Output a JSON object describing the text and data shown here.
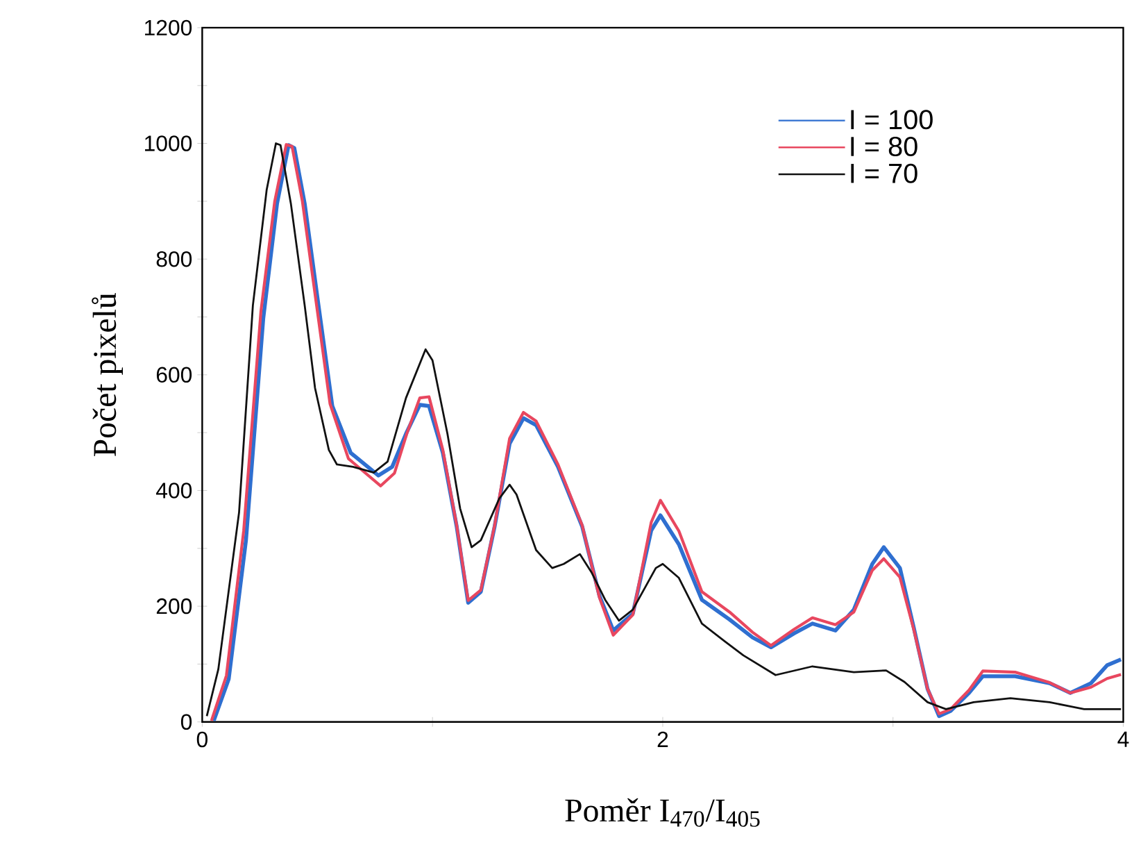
{
  "chart_data": {
    "type": "line",
    "xlabel": "Poměr I$_{470}$/I$_{405}$",
    "ylabel": "Počet pixelů",
    "xlim": [
      0,
      4
    ],
    "ylim": [
      0,
      1200
    ],
    "xticks": [
      0,
      {
        "value": 1,
        "label": null
      },
      2,
      {
        "value": 3,
        "label": null
      },
      4
    ],
    "yticks": [
      0,
      {
        "value": 100,
        "label": null
      },
      200,
      {
        "value": 300,
        "label": null
      },
      400,
      {
        "value": 500,
        "label": null
      },
      600,
      {
        "value": 700,
        "label": null
      },
      800,
      {
        "value": 900,
        "label": null
      },
      1000,
      {
        "value": 1100,
        "label": null
      },
      1200
    ],
    "legend": "top right",
    "grid": false,
    "marker": "none",
    "line_style": "solid",
    "series": [
      {
        "name": "I = 100",
        "color": "#2f6fd0",
        "x": [
          0.05,
          0.115,
          0.19,
          0.265,
          0.325,
          0.375,
          0.4,
          0.445,
          0.505,
          0.565,
          0.645,
          0.765,
          0.825,
          0.885,
          0.945,
          0.985,
          1.045,
          1.105,
          1.155,
          1.21,
          1.27,
          1.335,
          1.395,
          1.45,
          1.545,
          1.65,
          1.725,
          1.785,
          1.87,
          1.95,
          1.99,
          2.07,
          2.17,
          2.29,
          2.39,
          2.47,
          2.57,
          2.65,
          2.75,
          2.83,
          2.91,
          2.96,
          3.03,
          3.09,
          3.15,
          3.2,
          3.25,
          3.33,
          3.39,
          3.53,
          3.68,
          3.77,
          3.86,
          3.93,
          3.99
        ],
        "values": [
          2,
          74,
          314,
          697,
          896,
          997,
          992,
          896,
          720,
          546,
          465,
          426,
          441,
          498,
          548,
          546,
          465,
          338,
          206,
          225,
          338,
          481,
          525,
          513,
          441,
          338,
          218,
          158,
          187,
          331,
          357,
          307,
          211,
          177,
          146,
          129,
          153,
          170,
          158,
          194,
          273,
          302,
          266,
          163,
          57,
          10,
          19,
          50,
          79,
          79,
          67,
          50,
          67,
          98,
          108
        ]
      },
      {
        "name": "I = 80",
        "color": "#e8475f",
        "x": [
          0.04,
          0.105,
          0.18,
          0.255,
          0.315,
          0.365,
          0.39,
          0.435,
          0.495,
          0.555,
          0.635,
          0.775,
          0.835,
          0.89,
          0.945,
          0.985,
          1.045,
          1.105,
          1.155,
          1.21,
          1.27,
          1.335,
          1.395,
          1.45,
          1.545,
          1.65,
          1.725,
          1.785,
          1.87,
          1.95,
          1.99,
          2.07,
          2.17,
          2.29,
          2.39,
          2.47,
          2.57,
          2.65,
          2.75,
          2.83,
          2.91,
          2.96,
          3.03,
          3.09,
          3.15,
          3.2,
          3.25,
          3.33,
          3.39,
          3.53,
          3.68,
          3.77,
          3.86,
          3.93,
          3.99
        ],
        "values": [
          2,
          80,
          330,
          710,
          900,
          998,
          995,
          900,
          725,
          550,
          455,
          408,
          430,
          500,
          560,
          562,
          470,
          340,
          210,
          228,
          340,
          490,
          535,
          520,
          445,
          340,
          215,
          150,
          185,
          345,
          383,
          330,
          225,
          190,
          155,
          132,
          160,
          180,
          168,
          190,
          262,
          282,
          250,
          160,
          57,
          14,
          22,
          55,
          88,
          86,
          68,
          50,
          60,
          75,
          82
        ]
      },
      {
        "name": "I = 70",
        "color": "#111111",
        "x": [
          0.02,
          0.07,
          0.16,
          0.22,
          0.28,
          0.32,
          0.34,
          0.385,
          0.445,
          0.49,
          0.55,
          0.585,
          0.655,
          0.745,
          0.805,
          0.885,
          0.97,
          1.0,
          1.065,
          1.12,
          1.17,
          1.21,
          1.29,
          1.335,
          1.365,
          1.45,
          1.52,
          1.57,
          1.64,
          1.69,
          1.75,
          1.81,
          1.87,
          1.97,
          2.0,
          2.07,
          2.17,
          2.27,
          2.35,
          2.49,
          2.65,
          2.83,
          2.97,
          3.05,
          3.15,
          3.23,
          3.35,
          3.51,
          3.68,
          3.83,
          3.99
        ],
        "values": [
          10,
          91,
          362,
          720,
          920,
          1000,
          997,
          896,
          720,
          577,
          470,
          445,
          441,
          431,
          450,
          560,
          644,
          625,
          498,
          369,
          302,
          314,
          386,
          410,
          393,
          297,
          266,
          273,
          290,
          259,
          211,
          175,
          194,
          266,
          273,
          249,
          170,
          139,
          115,
          81,
          96,
          86,
          89,
          69,
          34,
          22,
          34,
          41,
          34,
          22,
          22
        ]
      }
    ]
  }
}
